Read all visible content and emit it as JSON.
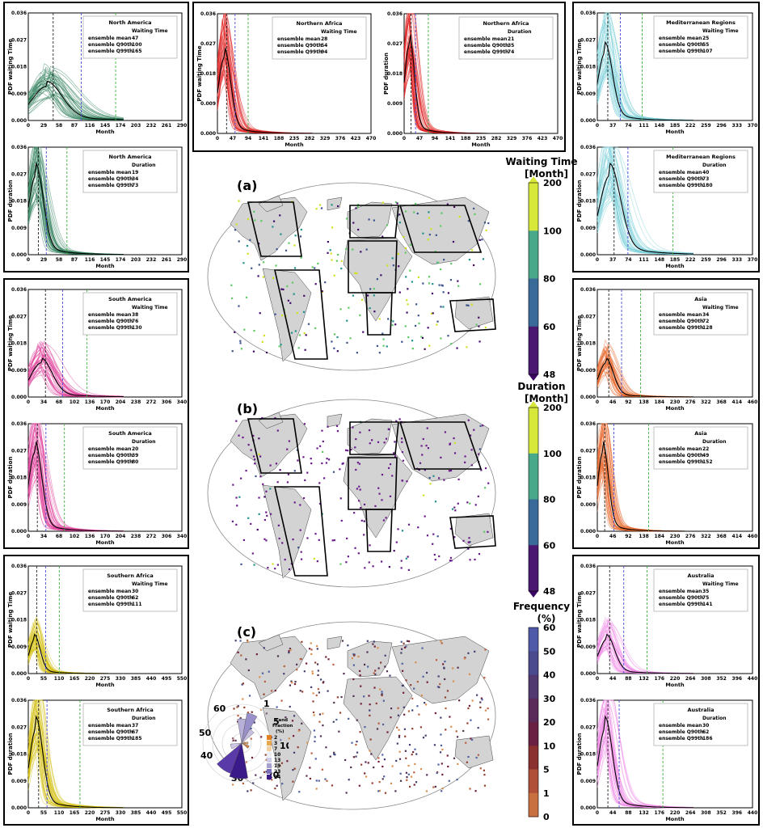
{
  "labels": {
    "panel_a": "(a)",
    "panel_b": "(b)",
    "panel_c": "(c)",
    "month": "Month",
    "pdf_wait": "PDF waiting Time",
    "pdf_dur": "PDF duration",
    "row_mean": "ensemble mean",
    "row_q90": "ensemble Q90th",
    "row_q99": "ensemble Q99th",
    "col_wait": "Waiting Time",
    "col_dur": "Duration"
  },
  "colorbars": {
    "waiting": {
      "title1": "Waiting Time",
      "title2": "[Month]",
      "ticks": [
        "200",
        "100",
        "80",
        "60",
        "48"
      ]
    },
    "duration": {
      "title1": "Duration",
      "title2": "[Month]",
      "ticks": [
        "200",
        "100",
        "80",
        "60",
        "48"
      ]
    },
    "frequency": {
      "title1": "Frequency",
      "title2": "(%)",
      "ticks": [
        "60",
        "50",
        "40",
        "30",
        "20",
        "10",
        "5",
        "1",
        "0"
      ]
    }
  },
  "wind_rose": {
    "labels": [
      "60",
      "1",
      "5",
      "10",
      "20",
      "30",
      "40",
      "50"
    ],
    "legend_title": "Land Fraction (%)",
    "legend_title_l1": "Land",
    "legend_title_l2": "Fraction",
    "legend_title_l3": "(%)",
    "legend_items": [
      "2",
      "3",
      "7",
      "10",
      "13",
      "19",
      "23",
      "24"
    ]
  },
  "colors": {
    "na": "#2e7d5a",
    "naf": "#e02020",
    "med": "#7ccfd8",
    "sa": "#e0409a",
    "asia": "#e8662a",
    "saf": "#d4c010",
    "aus": "#f08ce8",
    "q90": "#4a4ad8",
    "q99": "#40b040",
    "mean": "#222222"
  },
  "chart_data": [
    {
      "type": "line",
      "id": "na-wait",
      "region": "North America",
      "stat": "Waiting Time",
      "x_ticks": [
        "0",
        "29",
        "58",
        "87",
        "116",
        "145",
        "174",
        "203",
        "232",
        "261",
        "290"
      ],
      "y_ticks": [
        "0.000",
        "0.009",
        "0.018",
        "0.027",
        "0.036"
      ],
      "xlim": [
        0,
        290
      ],
      "ylim": [
        0,
        0.036
      ],
      "mean": 47,
      "q90": 100,
      "q99": 165
    },
    {
      "type": "line",
      "id": "na-dur",
      "region": "North America",
      "stat": "Duration",
      "x_ticks": [
        "0",
        "29",
        "58",
        "87",
        "116",
        "145",
        "174",
        "203",
        "232",
        "261",
        "290"
      ],
      "y_ticks": [
        "0.000",
        "0.009",
        "0.018",
        "0.027",
        "0.036"
      ],
      "xlim": [
        0,
        290
      ],
      "ylim": [
        0,
        0.036
      ],
      "mean": 19,
      "q90": 34,
      "q99": 73
    },
    {
      "type": "line",
      "id": "naf-wait",
      "region": "Northern Africa",
      "stat": "Waiting Time",
      "x_ticks": [
        "0",
        "47",
        "94",
        "141",
        "188",
        "235",
        "282",
        "329",
        "376",
        "423",
        "470"
      ],
      "y_ticks": [
        "0.000",
        "0.009",
        "0.018",
        "0.027",
        "0.036"
      ],
      "xlim": [
        0,
        470
      ],
      "ylim": [
        0,
        0.036
      ],
      "mean": 28,
      "q90": 54,
      "q99": 94
    },
    {
      "type": "line",
      "id": "naf-dur",
      "region": "Northern Africa",
      "stat": "Duration",
      "x_ticks": [
        "0",
        "47",
        "94",
        "141",
        "188",
        "235",
        "282",
        "329",
        "376",
        "423",
        "470"
      ],
      "y_ticks": [
        "0.000",
        "0.009",
        "0.018",
        "0.027",
        "0.036"
      ],
      "xlim": [
        0,
        470
      ],
      "ylim": [
        0,
        0.036
      ],
      "mean": 21,
      "q90": 35,
      "q99": 74
    },
    {
      "type": "line",
      "id": "med-wait",
      "region": "Mediterranean Regions",
      "stat": "Waiting Time",
      "x_ticks": [
        "0",
        "37",
        "74",
        "111",
        "148",
        "185",
        "222",
        "259",
        "296",
        "333",
        "370"
      ],
      "y_ticks": [
        "0.000",
        "0.009",
        "0.018",
        "0.027",
        "0.036"
      ],
      "xlim": [
        0,
        370
      ],
      "ylim": [
        0,
        0.036
      ],
      "mean": 25,
      "q90": 55,
      "q99": 107
    },
    {
      "type": "line",
      "id": "med-dur",
      "region": "Mediterranean Regions",
      "stat": "Duration",
      "x_ticks": [
        "0",
        "37",
        "74",
        "111",
        "148",
        "185",
        "222",
        "259",
        "296",
        "333",
        "370"
      ],
      "y_ticks": [
        "0.000",
        "0.009",
        "0.018",
        "0.027",
        "0.036"
      ],
      "xlim": [
        0,
        370
      ],
      "ylim": [
        0,
        0.036
      ],
      "mean": 40,
      "q90": 73,
      "q99": 180
    },
    {
      "type": "line",
      "id": "sa-wait",
      "region": "South America",
      "stat": "Waiting Time",
      "x_ticks": [
        "0",
        "34",
        "68",
        "102",
        "136",
        "170",
        "204",
        "238",
        "272",
        "306",
        "340"
      ],
      "y_ticks": [
        "0.000",
        "0.009",
        "0.018",
        "0.027",
        "0.036"
      ],
      "xlim": [
        0,
        340
      ],
      "ylim": [
        0,
        0.036
      ],
      "mean": 38,
      "q90": 76,
      "q99": 130
    },
    {
      "type": "line",
      "id": "sa-dur",
      "region": "South America",
      "stat": "Duration",
      "x_ticks": [
        "0",
        "34",
        "68",
        "102",
        "136",
        "170",
        "204",
        "238",
        "272",
        "306",
        "340"
      ],
      "y_ticks": [
        "0.000",
        "0.009",
        "0.018",
        "0.027",
        "0.036"
      ],
      "xlim": [
        0,
        340
      ],
      "ylim": [
        0,
        0.036
      ],
      "mean": 20,
      "q90": 39,
      "q99": 80
    },
    {
      "type": "line",
      "id": "asia-wait",
      "region": "Asia",
      "stat": "Waiting Time",
      "x_ticks": [
        "0",
        "46",
        "92",
        "138",
        "184",
        "230",
        "276",
        "322",
        "368",
        "414",
        "460"
      ],
      "y_ticks": [
        "0.000",
        "0.009",
        "0.018",
        "0.027",
        "0.036"
      ],
      "xlim": [
        0,
        460
      ],
      "ylim": [
        0,
        0.036
      ],
      "mean": 34,
      "q90": 72,
      "q99": 128
    },
    {
      "type": "line",
      "id": "asia-dur",
      "region": "Asia",
      "stat": "Duration",
      "x_ticks": [
        "0",
        "46",
        "92",
        "138",
        "184",
        "230",
        "276",
        "322",
        "368",
        "414",
        "460"
      ],
      "y_ticks": [
        "0.000",
        "0.009",
        "0.018",
        "0.027",
        "0.036"
      ],
      "xlim": [
        0,
        460
      ],
      "ylim": [
        0,
        0.036
      ],
      "mean": 22,
      "q90": 49,
      "q99": 152
    },
    {
      "type": "line",
      "id": "saf-wait",
      "region": "Southern Africa",
      "stat": "Waiting Time",
      "x_ticks": [
        "0",
        "55",
        "110",
        "165",
        "220",
        "275",
        "330",
        "385",
        "440",
        "495",
        "550"
      ],
      "y_ticks": [
        "0.000",
        "0.009",
        "0.018",
        "0.027",
        "0.036"
      ],
      "xlim": [
        0,
        550
      ],
      "ylim": [
        0,
        0.036
      ],
      "mean": 30,
      "q90": 62,
      "q99": 111
    },
    {
      "type": "line",
      "id": "saf-dur",
      "region": "Southern Africa",
      "stat": "Duration",
      "x_ticks": [
        "0",
        "55",
        "110",
        "165",
        "220",
        "275",
        "330",
        "385",
        "440",
        "495",
        "550"
      ],
      "y_ticks": [
        "0.000",
        "0.009",
        "0.018",
        "0.027",
        "0.036"
      ],
      "xlim": [
        0,
        550
      ],
      "ylim": [
        0,
        0.036
      ],
      "mean": 37,
      "q90": 67,
      "q99": 185
    },
    {
      "type": "line",
      "id": "aus-wait",
      "region": "Australia",
      "stat": "Waiting Time",
      "x_ticks": [
        "0",
        "44",
        "88",
        "132",
        "176",
        "220",
        "264",
        "308",
        "352",
        "396",
        "440"
      ],
      "y_ticks": [
        "0.000",
        "0.009",
        "0.018",
        "0.027",
        "0.036"
      ],
      "xlim": [
        0,
        440
      ],
      "ylim": [
        0,
        0.036
      ],
      "mean": 35,
      "q90": 75,
      "q99": 141
    },
    {
      "type": "line",
      "id": "aus-dur",
      "region": "Australia",
      "stat": "Duration",
      "x_ticks": [
        "0",
        "44",
        "88",
        "132",
        "176",
        "220",
        "264",
        "308",
        "352",
        "396",
        "440"
      ],
      "y_ticks": [
        "0.000",
        "0.009",
        "0.018",
        "0.027",
        "0.036"
      ],
      "xlim": [
        0,
        440
      ],
      "ylim": [
        0,
        0.036
      ],
      "mean": 30,
      "q90": 62,
      "q99": 186
    }
  ]
}
